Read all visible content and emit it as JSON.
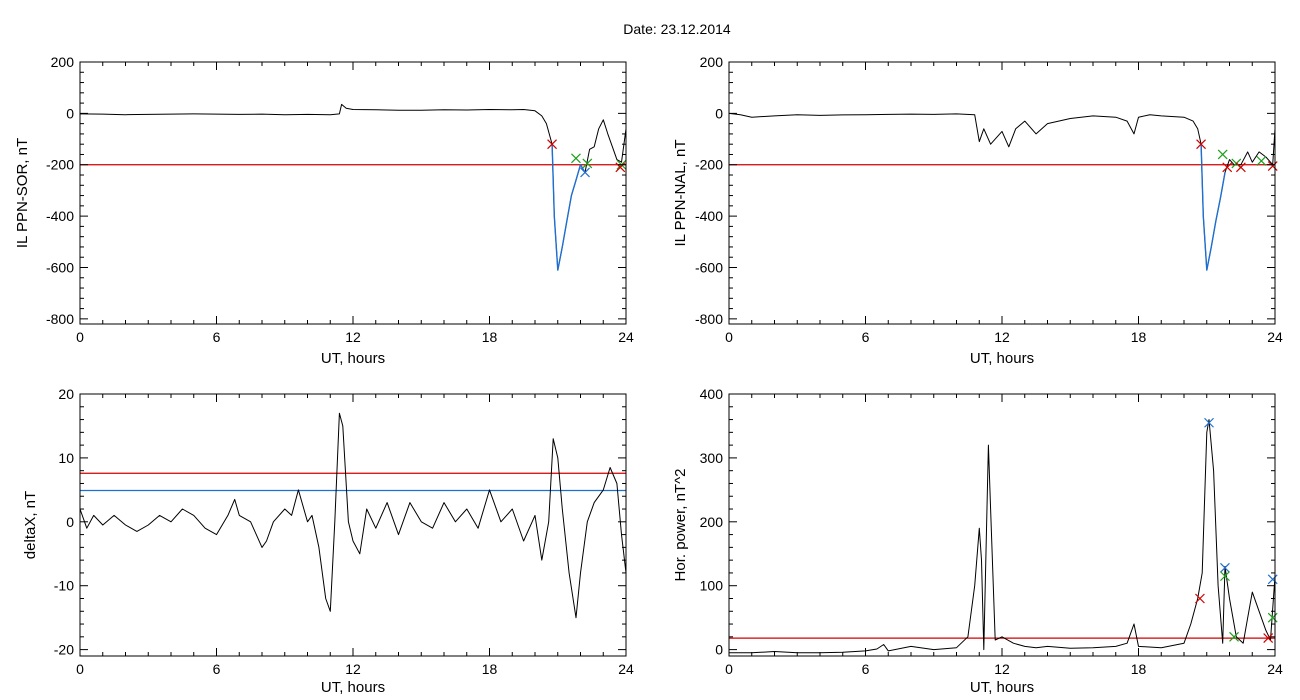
{
  "figure": {
    "title": "Date:  23.12.2014"
  },
  "chart_data": [
    {
      "type": "line",
      "panel": "top-left",
      "xlabel": "UT, hours",
      "ylabel": "IL PPN-SOR, nT",
      "xlim": [
        0,
        24
      ],
      "ylim": [
        -820,
        200
      ],
      "xticks": [
        0,
        6,
        12,
        18,
        24
      ],
      "yticks": [
        200,
        0,
        -200,
        -400,
        -600,
        -800
      ],
      "series": [
        {
          "color": "#000000",
          "x": [
            0,
            1,
            2,
            3,
            4,
            5,
            6,
            7,
            8,
            9,
            10,
            11,
            11.4,
            11.5,
            11.7,
            12,
            13,
            14,
            15,
            16,
            17,
            18,
            19,
            19.5,
            20,
            20.3,
            20.5,
            20.75,
            20.85,
            21,
            21.2,
            21.4,
            21.6,
            21.8,
            22,
            22.2,
            22.4,
            22.6,
            22.8,
            23,
            23.2,
            23.4,
            23.6,
            23.8,
            24
          ],
          "y": [
            -2,
            -3,
            -5,
            -4,
            -3,
            -2,
            -3,
            -4,
            -3,
            -5,
            -4,
            -5,
            -2,
            35,
            20,
            15,
            14,
            12,
            12,
            14,
            13,
            15,
            14,
            15,
            10,
            -10,
            -40,
            -120,
            -400,
            -610,
            -520,
            -420,
            -320,
            -260,
            -200,
            -230,
            -140,
            -130,
            -60,
            -25,
            -80,
            -130,
            -180,
            -190,
            -60
          ]
        },
        {
          "color": "#1f6fd1",
          "x": [
            20.75,
            20.85,
            21,
            21.2,
            21.4,
            21.6,
            21.8,
            22,
            22.2
          ],
          "y": [
            -120,
            -400,
            -610,
            -520,
            -420,
            -320,
            -260,
            -200,
            -230
          ]
        }
      ],
      "threshold": [
        {
          "y": -200,
          "color": "#d00000"
        }
      ],
      "markers": [
        {
          "x": 20.75,
          "y": -120,
          "color": "#d00000"
        },
        {
          "x": 21.8,
          "y": -175,
          "color": "#1aa01a"
        },
        {
          "x": 22.3,
          "y": -195,
          "color": "#1aa01a"
        },
        {
          "x": 22.2,
          "y": -230,
          "color": "#1f6fd1"
        },
        {
          "x": 23.8,
          "y": -200,
          "color": "#1aa01a"
        },
        {
          "x": 23.75,
          "y": -210,
          "color": "#d00000"
        }
      ]
    },
    {
      "type": "line",
      "panel": "top-right",
      "xlabel": "UT, hours",
      "ylabel": "IL PPN-NAL, nT",
      "xlim": [
        0,
        24
      ],
      "ylim": [
        -820,
        200
      ],
      "xticks": [
        0,
        6,
        12,
        18,
        24
      ],
      "yticks": [
        200,
        0,
        -200,
        -400,
        -600,
        -800
      ],
      "series": [
        {
          "color": "#000000",
          "x": [
            0,
            0.5,
            1,
            2,
            3,
            4,
            5,
            6,
            7,
            8,
            9,
            10,
            10.8,
            11,
            11.2,
            11.5,
            12,
            12.3,
            12.6,
            13,
            13.5,
            14,
            15,
            16,
            17,
            17.5,
            17.8,
            18,
            18.5,
            19,
            20,
            20.4,
            20.6,
            20.75,
            20.85,
            21,
            21.2,
            21.4,
            21.6,
            21.8,
            22,
            22.2,
            22.5,
            22.8,
            23,
            23.3,
            23.6,
            23.9,
            24
          ],
          "y": [
            0,
            -5,
            -15,
            -10,
            -5,
            -8,
            -6,
            -5,
            -4,
            -3,
            -4,
            -2,
            -5,
            -110,
            -60,
            -120,
            -70,
            -130,
            -60,
            -30,
            -80,
            -40,
            -20,
            -10,
            -15,
            -30,
            -80,
            -15,
            -5,
            -10,
            -15,
            -30,
            -60,
            -120,
            -400,
            -610,
            -520,
            -420,
            -330,
            -230,
            -180,
            -200,
            -200,
            -150,
            -190,
            -150,
            -170,
            -200,
            -60
          ]
        },
        {
          "color": "#1f6fd1",
          "x": [
            20.75,
            20.85,
            21,
            21.2,
            21.4,
            21.6,
            21.8
          ],
          "y": [
            -120,
            -400,
            -610,
            -520,
            -420,
            -330,
            -230
          ]
        }
      ],
      "threshold": [
        {
          "y": -200,
          "color": "#d00000"
        }
      ],
      "markers": [
        {
          "x": 20.75,
          "y": -120,
          "color": "#d00000"
        },
        {
          "x": 21.7,
          "y": -160,
          "color": "#1aa01a"
        },
        {
          "x": 21.9,
          "y": -210,
          "color": "#d00000"
        },
        {
          "x": 22.3,
          "y": -195,
          "color": "#1aa01a"
        },
        {
          "x": 22.5,
          "y": -210,
          "color": "#d00000"
        },
        {
          "x": 23.4,
          "y": -185,
          "color": "#1aa01a"
        },
        {
          "x": 23.9,
          "y": -205,
          "color": "#d00000"
        }
      ]
    },
    {
      "type": "line",
      "panel": "bottom-left",
      "xlabel": "UT, hours",
      "ylabel": "deltaX, nT",
      "xlim": [
        0,
        24
      ],
      "ylim": [
        -21,
        20
      ],
      "xticks": [
        0,
        6,
        12,
        18,
        24
      ],
      "yticks": [
        20,
        10,
        0,
        -10,
        -20
      ],
      "series": [
        {
          "color": "#000000",
          "x": [
            0,
            0.3,
            0.6,
            1,
            1.5,
            2,
            2.5,
            3,
            3.5,
            4,
            4.5,
            5,
            5.5,
            6,
            6.5,
            6.8,
            7,
            7.5,
            8,
            8.2,
            8.5,
            9,
            9.3,
            9.6,
            10,
            10.2,
            10.5,
            10.8,
            11,
            11.2,
            11.4,
            11.55,
            11.8,
            12,
            12.3,
            12.6,
            13,
            13.5,
            14,
            14.5,
            15,
            15.5,
            16,
            16.5,
            17,
            17.5,
            18,
            18.5,
            19,
            19.5,
            20,
            20.3,
            20.6,
            20.8,
            21,
            21.2,
            21.5,
            21.8,
            22,
            22.3,
            22.6,
            23,
            23.3,
            23.6,
            23.8,
            24
          ],
          "y": [
            2,
            -1,
            1,
            -0.5,
            1,
            -0.5,
            -1.5,
            -0.5,
            1,
            0,
            2,
            1,
            -1,
            -2,
            1,
            3.5,
            1,
            0,
            -4,
            -3,
            0,
            2,
            1,
            5,
            0,
            1,
            -4,
            -12,
            -14,
            0,
            17,
            15,
            0,
            -3,
            -5,
            2,
            -1,
            3,
            -2,
            3,
            0,
            -1,
            3,
            0,
            2,
            -1,
            5,
            0,
            2,
            -3,
            1,
            -6,
            0,
            13,
            10,
            2,
            -8,
            -15,
            -8,
            0,
            3,
            5,
            8.5,
            6,
            -2,
            -8
          ]
        }
      ],
      "threshold": [
        {
          "y": 7.6,
          "color": "#d00000"
        },
        {
          "y": 4.9,
          "color": "#1f6fd1"
        }
      ],
      "markers": []
    },
    {
      "type": "line",
      "panel": "bottom-right",
      "xlabel": "UT, hours",
      "ylabel": "Hor. power, nT^2",
      "xlim": [
        0,
        24
      ],
      "ylim": [
        -10,
        400
      ],
      "xticks": [
        0,
        6,
        12,
        18,
        24
      ],
      "yticks": [
        400,
        300,
        200,
        100,
        0
      ],
      "series": [
        {
          "color": "#000000",
          "x": [
            0,
            1,
            2,
            3,
            4,
            5,
            6,
            6.5,
            6.8,
            7,
            8,
            9,
            10,
            10.5,
            10.8,
            11,
            11.1,
            11.2,
            11.4,
            11.5,
            11.7,
            12,
            12.5,
            13,
            13.5,
            14,
            15,
            16,
            17,
            17.5,
            17.8,
            18,
            19,
            20,
            20.3,
            20.6,
            20.8,
            21,
            21.1,
            21.3,
            21.5,
            21.7,
            21.8,
            22,
            22.3,
            22.6,
            22.8,
            23,
            23.3,
            23.6,
            23.8,
            24
          ],
          "y": [
            -5,
            -5,
            -3,
            -5,
            -5,
            -4,
            -2,
            1,
            8,
            -2,
            5,
            0,
            3,
            20,
            100,
            190,
            140,
            0,
            320,
            220,
            15,
            20,
            10,
            5,
            3,
            5,
            2,
            3,
            5,
            10,
            40,
            5,
            3,
            10,
            40,
            80,
            120,
            340,
            360,
            280,
            100,
            10,
            130,
            80,
            20,
            10,
            50,
            90,
            60,
            30,
            15,
            115
          ]
        }
      ],
      "threshold": [
        {
          "y": 18,
          "color": "#d00000"
        }
      ],
      "markers": [
        {
          "x": 20.7,
          "y": 80,
          "color": "#d00000"
        },
        {
          "x": 21.1,
          "y": 355,
          "color": "#1f6fd1"
        },
        {
          "x": 21.8,
          "y": 128,
          "color": "#1f6fd1"
        },
        {
          "x": 21.8,
          "y": 115,
          "color": "#1aa01a"
        },
        {
          "x": 22.2,
          "y": 20,
          "color": "#1aa01a"
        },
        {
          "x": 23.7,
          "y": 18,
          "color": "#d00000"
        },
        {
          "x": 23.9,
          "y": 110,
          "color": "#1f6fd1"
        },
        {
          "x": 23.9,
          "y": 50,
          "color": "#1aa01a"
        }
      ]
    }
  ]
}
